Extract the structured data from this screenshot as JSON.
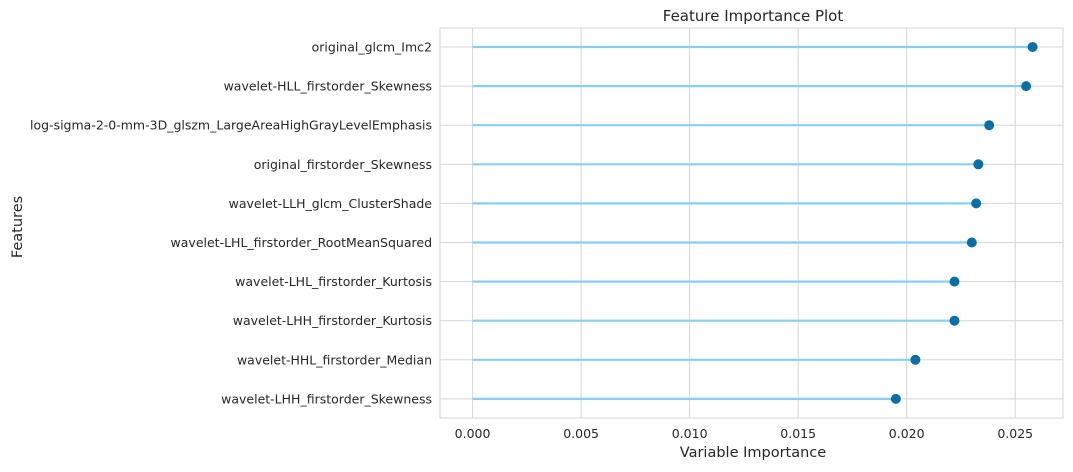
{
  "chart_data": {
    "type": "lollipop",
    "title": "Feature Importance Plot",
    "xlabel": "Variable Importance",
    "ylabel": "Features",
    "xlim": [
      -0.0015,
      0.0272
    ],
    "xticks": [
      0.0,
      0.005,
      0.01,
      0.015,
      0.02,
      0.025
    ],
    "xtick_labels": [
      "0.000",
      "0.005",
      "0.010",
      "0.015",
      "0.020",
      "0.025"
    ],
    "grid": true,
    "colors": {
      "stem": "#87cefa",
      "marker": "#0b6fa4",
      "grid": "#d5d5d5",
      "text": "#262626"
    },
    "categories": [
      "original_glcm_Imc2",
      "wavelet-HLL_firstorder_Skewness",
      "log-sigma-2-0-mm-3D_glszm_LargeAreaHighGrayLevelEmphasis",
      "original_firstorder_Skewness",
      "wavelet-LLH_glcm_ClusterShade",
      "wavelet-LHL_firstorder_RootMeanSquared",
      "wavelet-LHL_firstorder_Kurtosis",
      "wavelet-LHH_firstorder_Kurtosis",
      "wavelet-HHL_firstorder_Median",
      "wavelet-LHH_firstorder_Skewness"
    ],
    "values": [
      0.0258,
      0.0255,
      0.0238,
      0.0233,
      0.0232,
      0.023,
      0.0222,
      0.0222,
      0.0204,
      0.0195
    ]
  }
}
